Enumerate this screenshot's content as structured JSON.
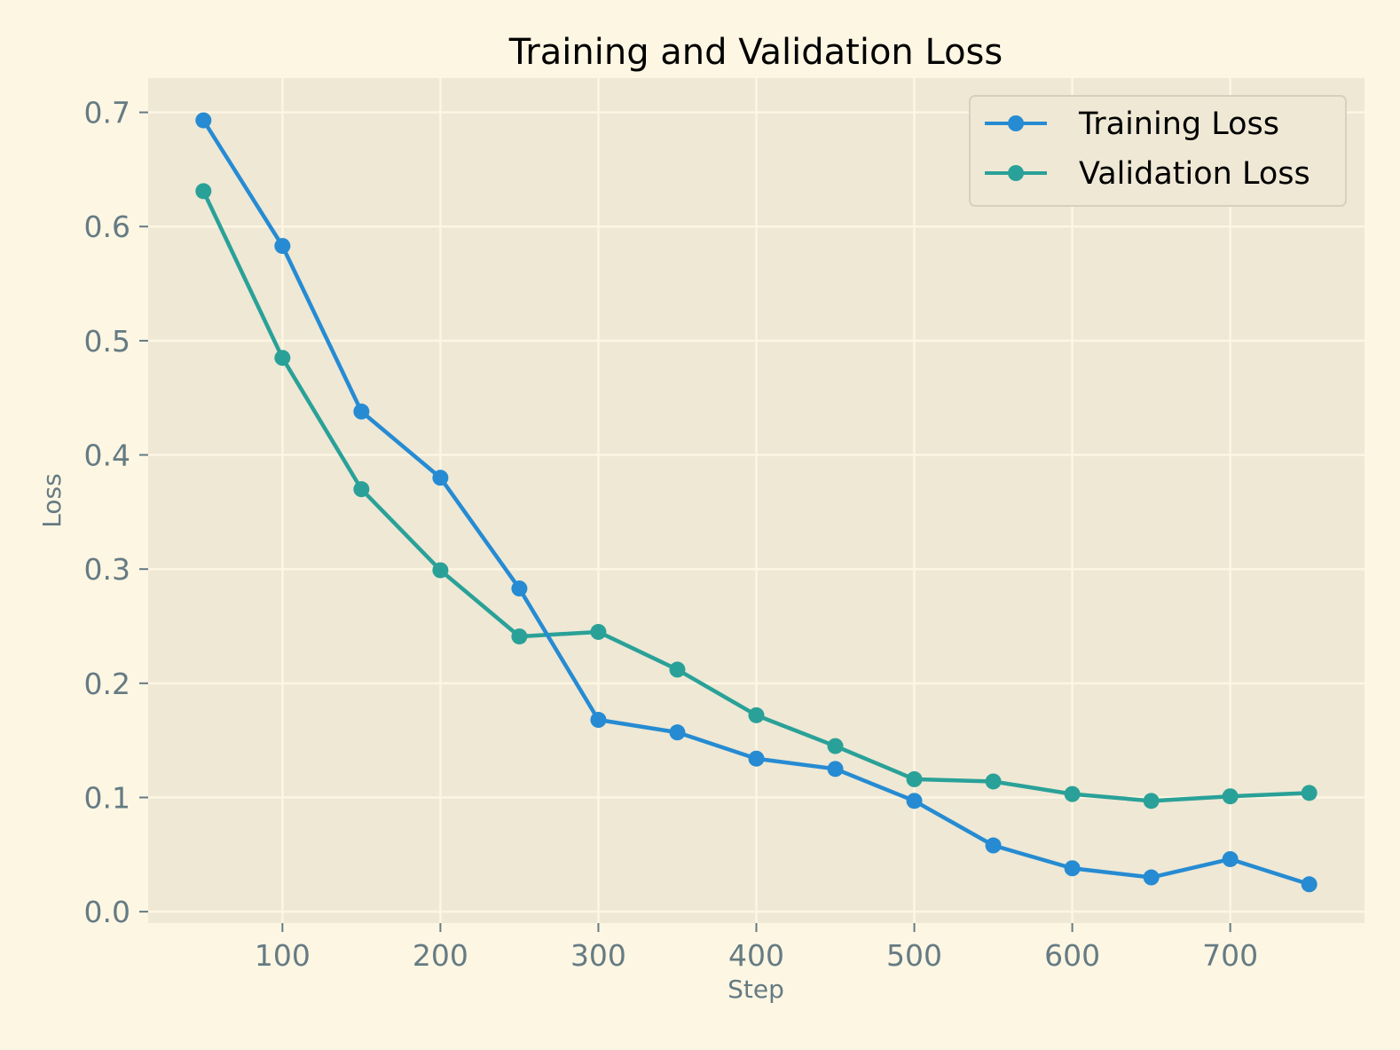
{
  "chart_data": {
    "type": "line",
    "title": "Training and Validation Loss",
    "xlabel": "Step",
    "ylabel": "Loss",
    "xlim": [
      15,
      785
    ],
    "ylim": [
      -0.01,
      0.73
    ],
    "xticks": [
      100,
      200,
      300,
      400,
      500,
      600,
      700
    ],
    "yticks": [
      0.0,
      0.1,
      0.2,
      0.3,
      0.4,
      0.5,
      0.6,
      0.7
    ],
    "ytick_labels": [
      "0.0",
      "0.1",
      "0.2",
      "0.3",
      "0.4",
      "0.5",
      "0.6",
      "0.7"
    ],
    "grid": true,
    "legend_position": "top-right",
    "x": [
      50,
      100,
      150,
      200,
      250,
      300,
      350,
      400,
      450,
      500,
      550,
      600,
      650,
      700,
      750
    ],
    "series": [
      {
        "name": "Training Loss",
        "color": "#268bd2",
        "values": [
          0.693,
          0.583,
          0.438,
          0.38,
          0.283,
          0.168,
          0.157,
          0.134,
          0.125,
          0.097,
          0.058,
          0.038,
          0.03,
          0.046,
          0.024
        ]
      },
      {
        "name": "Validation Loss",
        "color": "#2aa198",
        "values": [
          0.631,
          0.485,
          0.37,
          0.299,
          0.241,
          0.245,
          0.212,
          0.172,
          0.145,
          0.116,
          0.114,
          0.103,
          0.097,
          0.101,
          0.104
        ]
      }
    ],
    "colors": {
      "page_background": "#fdf6e3",
      "plot_background": "#eee8d5",
      "grid": "#fdf6e3",
      "tick_text": "#657b83"
    }
  }
}
